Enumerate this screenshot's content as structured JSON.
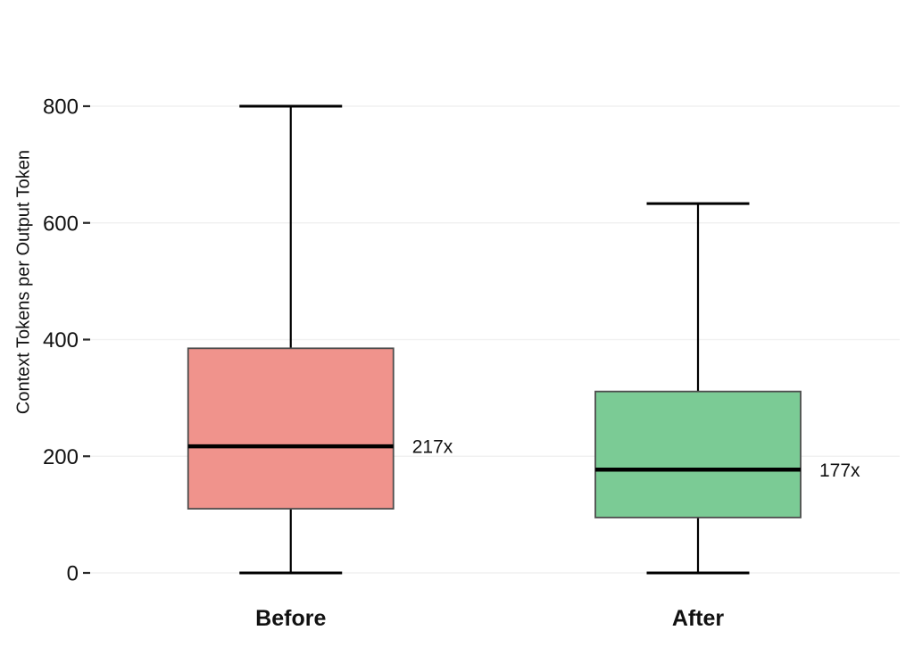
{
  "chart_data": {
    "type": "box",
    "title": "",
    "xlabel": "",
    "ylabel": "Context Tokens per Output Token",
    "categories": [
      "Before",
      "After"
    ],
    "yticks": [
      0,
      200,
      400,
      600,
      800
    ],
    "ylim": [
      0,
      800
    ],
    "grid": true,
    "legend": "none",
    "background_color": "#ffffff",
    "gridline_color": "#f1f1f1",
    "tick_color": "#2a2a2a",
    "series": [
      {
        "name": "Before",
        "min": 0,
        "q1": 110,
        "median": 217,
        "q3": 385,
        "max": 800,
        "annotation": "217x",
        "fill_color": "#F0938C",
        "edge_color": "#4d4d4d",
        "whisker_color": "#000000",
        "median_color": "#000000"
      },
      {
        "name": "After",
        "min": 0,
        "q1": 95,
        "median": 177,
        "q3": 311,
        "max": 633,
        "annotation": "177x",
        "fill_color": "#7BCB95",
        "edge_color": "#4d4d4d",
        "whisker_color": "#000000",
        "median_color": "#000000"
      }
    ]
  }
}
